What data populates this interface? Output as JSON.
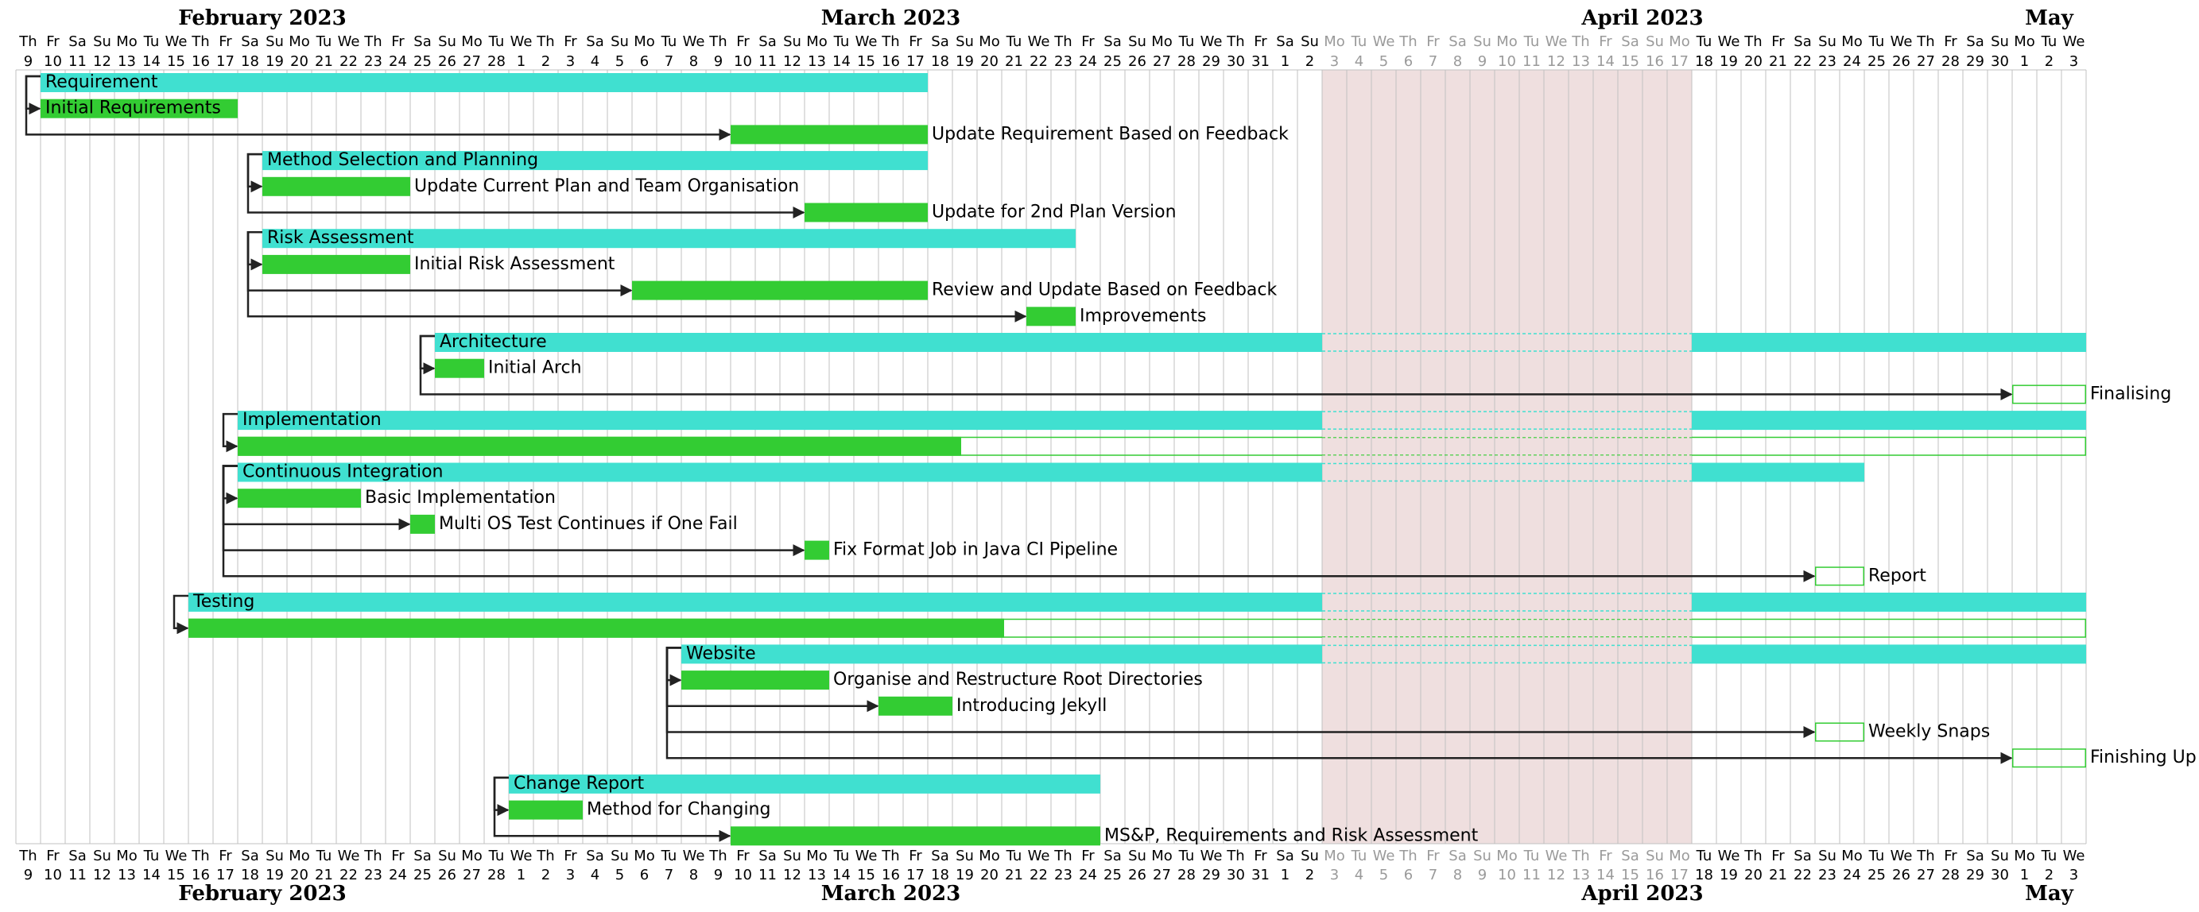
{
  "chart_data": {
    "type": "gantt",
    "start_date": "2023-02-09",
    "end_date": "2023-05-03",
    "months": [
      {
        "label": "February 2023",
        "start": "2023-02-09",
        "end": "2023-02-28"
      },
      {
        "label": "March 2023",
        "start": "2023-03-01",
        "end": "2023-03-31"
      },
      {
        "label": "April 2023",
        "start": "2023-04-01",
        "end": "2023-04-30"
      },
      {
        "label": "May",
        "start": "2023-05-01",
        "end": "2023-05-03"
      }
    ],
    "closed_period": {
      "start": "2023-04-03",
      "end": "2023-04-17"
    },
    "colors": {
      "group": "#40e0d0",
      "progress": "#33cc33",
      "remaining_border": "#33cc33",
      "closed": "#efdfdf",
      "grid": "#c0c0c0",
      "arrow": "#222222"
    },
    "rows": [
      {
        "kind": "group",
        "label": "Requirement",
        "start": "2023-02-10",
        "end": "2023-03-17",
        "label_inside": true
      },
      {
        "kind": "task",
        "label": "Initial Requirements",
        "start": "2023-02-10",
        "end": "2023-02-17",
        "progress": 1,
        "label_inside": true,
        "dep_from": 0
      },
      {
        "kind": "task",
        "label": "Update Requirement Based on Feedback",
        "start": "2023-03-10",
        "end": "2023-03-17",
        "progress": 1,
        "dep_from": 0
      },
      {
        "kind": "group",
        "label": "Method Selection and Planning",
        "start": "2023-02-19",
        "end": "2023-03-17",
        "label_inside": true
      },
      {
        "kind": "task",
        "label": "Update Current Plan and Team Organisation",
        "start": "2023-02-19",
        "end": "2023-02-24",
        "progress": 1,
        "dep_from": 3
      },
      {
        "kind": "task",
        "label": "Update for 2nd Plan Version",
        "start": "2023-03-13",
        "end": "2023-03-17",
        "progress": 1,
        "dep_from": 3
      },
      {
        "kind": "group",
        "label": "Risk Assessment",
        "start": "2023-02-19",
        "end": "2023-03-23",
        "label_inside": true
      },
      {
        "kind": "task",
        "label": "Initial Risk Assessment",
        "start": "2023-02-19",
        "end": "2023-02-24",
        "progress": 1,
        "dep_from": 6
      },
      {
        "kind": "task",
        "label": "Review and Update Based on Feedback",
        "start": "2023-03-06",
        "end": "2023-03-17",
        "progress": 1,
        "dep_from": 6
      },
      {
        "kind": "task",
        "label": "Improvements",
        "start": "2023-03-22",
        "end": "2023-03-23",
        "progress": 1,
        "dep_from": 6
      },
      {
        "kind": "group",
        "label": "Architecture",
        "start": "2023-02-26",
        "end": "2023-05-03",
        "label_inside": true
      },
      {
        "kind": "task",
        "label": "Initial Arch",
        "start": "2023-02-26",
        "end": "2023-02-27",
        "progress": 1,
        "dep_from": 10
      },
      {
        "kind": "task",
        "label": "Finalising",
        "start": "2023-05-01",
        "end": "2023-05-03",
        "progress": 0,
        "dep_from": 10
      },
      {
        "kind": "group",
        "label": "Implementation",
        "start": "2023-02-18",
        "end": "2023-05-03",
        "label_inside": true
      },
      {
        "kind": "task",
        "label": "",
        "start": "2023-02-18",
        "end": "2023-05-03",
        "progress": 0.3913,
        "dep_from": 13
      },
      {
        "kind": "group",
        "label": "Continuous Integration",
        "start": "2023-02-18",
        "end": "2023-04-24",
        "label_inside": true
      },
      {
        "kind": "task",
        "label": "Basic Implementation",
        "start": "2023-02-18",
        "end": "2023-02-22",
        "progress": 1,
        "dep_from": 15
      },
      {
        "kind": "task",
        "label": "Multi OS Test Continues if One Fail",
        "start": "2023-02-25",
        "end": "2023-02-25",
        "progress": 1,
        "dep_from": 15
      },
      {
        "kind": "task",
        "label": "Fix Format Job in Java CI Pipeline",
        "start": "2023-03-13",
        "end": "2023-03-13",
        "progress": 1,
        "dep_from": 15
      },
      {
        "kind": "task",
        "label": "Report",
        "start": "2023-04-23",
        "end": "2023-04-24",
        "progress": 0,
        "dep_from": 15
      },
      {
        "kind": "group",
        "label": "Testing",
        "start": "2023-02-16",
        "end": "2023-05-03",
        "label_inside": true
      },
      {
        "kind": "task",
        "label": "",
        "start": "2023-02-16",
        "end": "2023-05-03",
        "progress": 0.43,
        "dep_from": 20
      },
      {
        "kind": "group",
        "label": "Website",
        "start": "2023-03-08",
        "end": "2023-05-03",
        "label_inside": true
      },
      {
        "kind": "task",
        "label": "Organise and Restructure Root Directories",
        "start": "2023-03-08",
        "end": "2023-03-13",
        "progress": 1,
        "dep_from": 22
      },
      {
        "kind": "task",
        "label": "Introducing Jekyll",
        "start": "2023-03-16",
        "end": "2023-03-18",
        "progress": 1,
        "dep_from": 22
      },
      {
        "kind": "task",
        "label": "Weekly Snaps",
        "start": "2023-04-23",
        "end": "2023-04-24",
        "progress": 0,
        "dep_from": 22
      },
      {
        "kind": "task",
        "label": "Finishing Up",
        "start": "2023-05-01",
        "end": "2023-05-03",
        "progress": 0,
        "dep_from": 22
      },
      {
        "kind": "group",
        "label": "Change Report",
        "start": "2023-03-01",
        "end": "2023-03-24",
        "label_inside": true
      },
      {
        "kind": "task",
        "label": "Method for Changing",
        "start": "2023-03-01",
        "end": "2023-03-03",
        "progress": 1,
        "dep_from": 27
      },
      {
        "kind": "task",
        "label": "MS&P, Requirements and Risk Assessment",
        "start": "2023-03-10",
        "end": "2023-03-24",
        "progress": 1,
        "dep_from": 27
      }
    ]
  }
}
